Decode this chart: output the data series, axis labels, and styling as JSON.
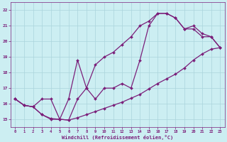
{
  "background_color": "#cceef2",
  "grid_color": "#aad4dc",
  "line_color": "#7b1f7a",
  "marker_color": "#7b1f7a",
  "xlabel": "Windchill (Refroidissement éolien,°C)",
  "xlim": [
    -0.5,
    23.5
  ],
  "ylim": [
    14.5,
    22.5
  ],
  "yticks": [
    15,
    16,
    17,
    18,
    19,
    20,
    21,
    22
  ],
  "xticks": [
    0,
    1,
    2,
    3,
    4,
    5,
    6,
    7,
    8,
    9,
    10,
    11,
    12,
    13,
    14,
    15,
    16,
    17,
    18,
    19,
    20,
    21,
    22,
    23
  ],
  "line_a_x": [
    0,
    1,
    2,
    3,
    4,
    5,
    6,
    7,
    8,
    9,
    10,
    11,
    12,
    13,
    14,
    15,
    16,
    17,
    18,
    19,
    20,
    21,
    22,
    23
  ],
  "line_a_y": [
    16.3,
    15.9,
    15.8,
    15.3,
    15.05,
    15.0,
    14.95,
    15.1,
    15.3,
    15.5,
    15.7,
    15.9,
    16.1,
    16.35,
    16.6,
    16.95,
    17.3,
    17.6,
    17.9,
    18.3,
    18.8,
    19.2,
    19.5,
    19.6
  ],
  "line_b_x": [
    0,
    1,
    2,
    3,
    4,
    5,
    6,
    7,
    8,
    9,
    10,
    11,
    12,
    13,
    14,
    15,
    16,
    17,
    18,
    19,
    20,
    21,
    22,
    23
  ],
  "line_b_y": [
    16.3,
    15.9,
    15.8,
    16.3,
    16.3,
    15.0,
    16.3,
    18.8,
    17.0,
    16.3,
    17.0,
    17.0,
    17.3,
    17.0,
    18.8,
    21.0,
    21.8,
    21.8,
    21.5,
    20.8,
    21.0,
    20.5,
    20.3,
    19.6
  ],
  "line_c_x": [
    0,
    1,
    2,
    3,
    4,
    5,
    6,
    7,
    8,
    9,
    10,
    11,
    12,
    13,
    14,
    15,
    16,
    17,
    18,
    19,
    20,
    21,
    22,
    23
  ],
  "line_c_y": [
    16.3,
    15.9,
    15.8,
    15.3,
    15.0,
    15.0,
    14.95,
    16.3,
    17.0,
    18.5,
    19.0,
    19.3,
    19.8,
    20.3,
    21.0,
    21.3,
    21.8,
    21.8,
    21.5,
    20.8,
    20.8,
    20.3,
    20.3,
    19.6
  ]
}
